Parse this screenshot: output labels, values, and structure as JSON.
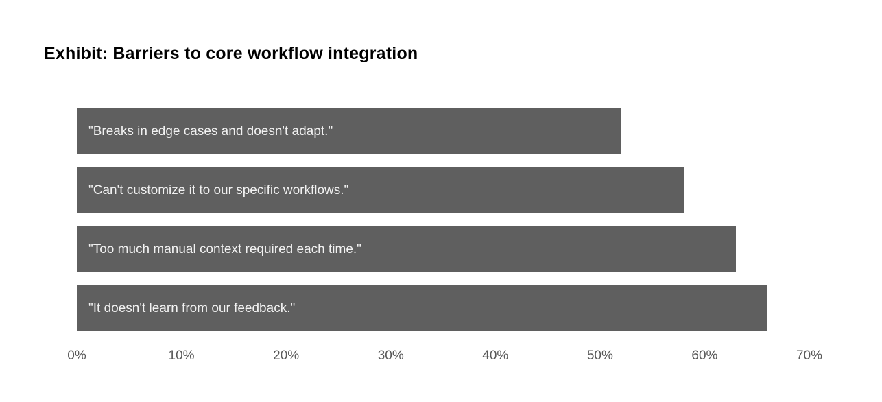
{
  "title": "Exhibit: Barriers to core workflow integration",
  "colors": {
    "background": "#ffffff",
    "bar": "#5f5f5f",
    "bar_text": "#f2f2f2",
    "axis_text": "#595959",
    "title_text": "#000000"
  },
  "chart_data": {
    "type": "bar",
    "orientation": "horizontal",
    "title": "Exhibit: Barriers to core workflow integration",
    "categories": [
      "\"Breaks in edge cases and doesn't adapt.\"",
      "\"Can't customize it to our specific workflows.\"",
      "\"Too much manual context required each time.\"",
      "\"It doesn't learn from our feedback.\""
    ],
    "values": [
      52,
      58,
      63,
      66
    ],
    "unit": "%",
    "xlabel": "",
    "ylabel": "",
    "xlim": [
      0,
      70
    ],
    "x_ticks": [
      "0%",
      "10%",
      "20%",
      "30%",
      "40%",
      "50%",
      "60%",
      "70%"
    ],
    "grid": false,
    "legend": false,
    "bar_label_position": "inside-left"
  }
}
